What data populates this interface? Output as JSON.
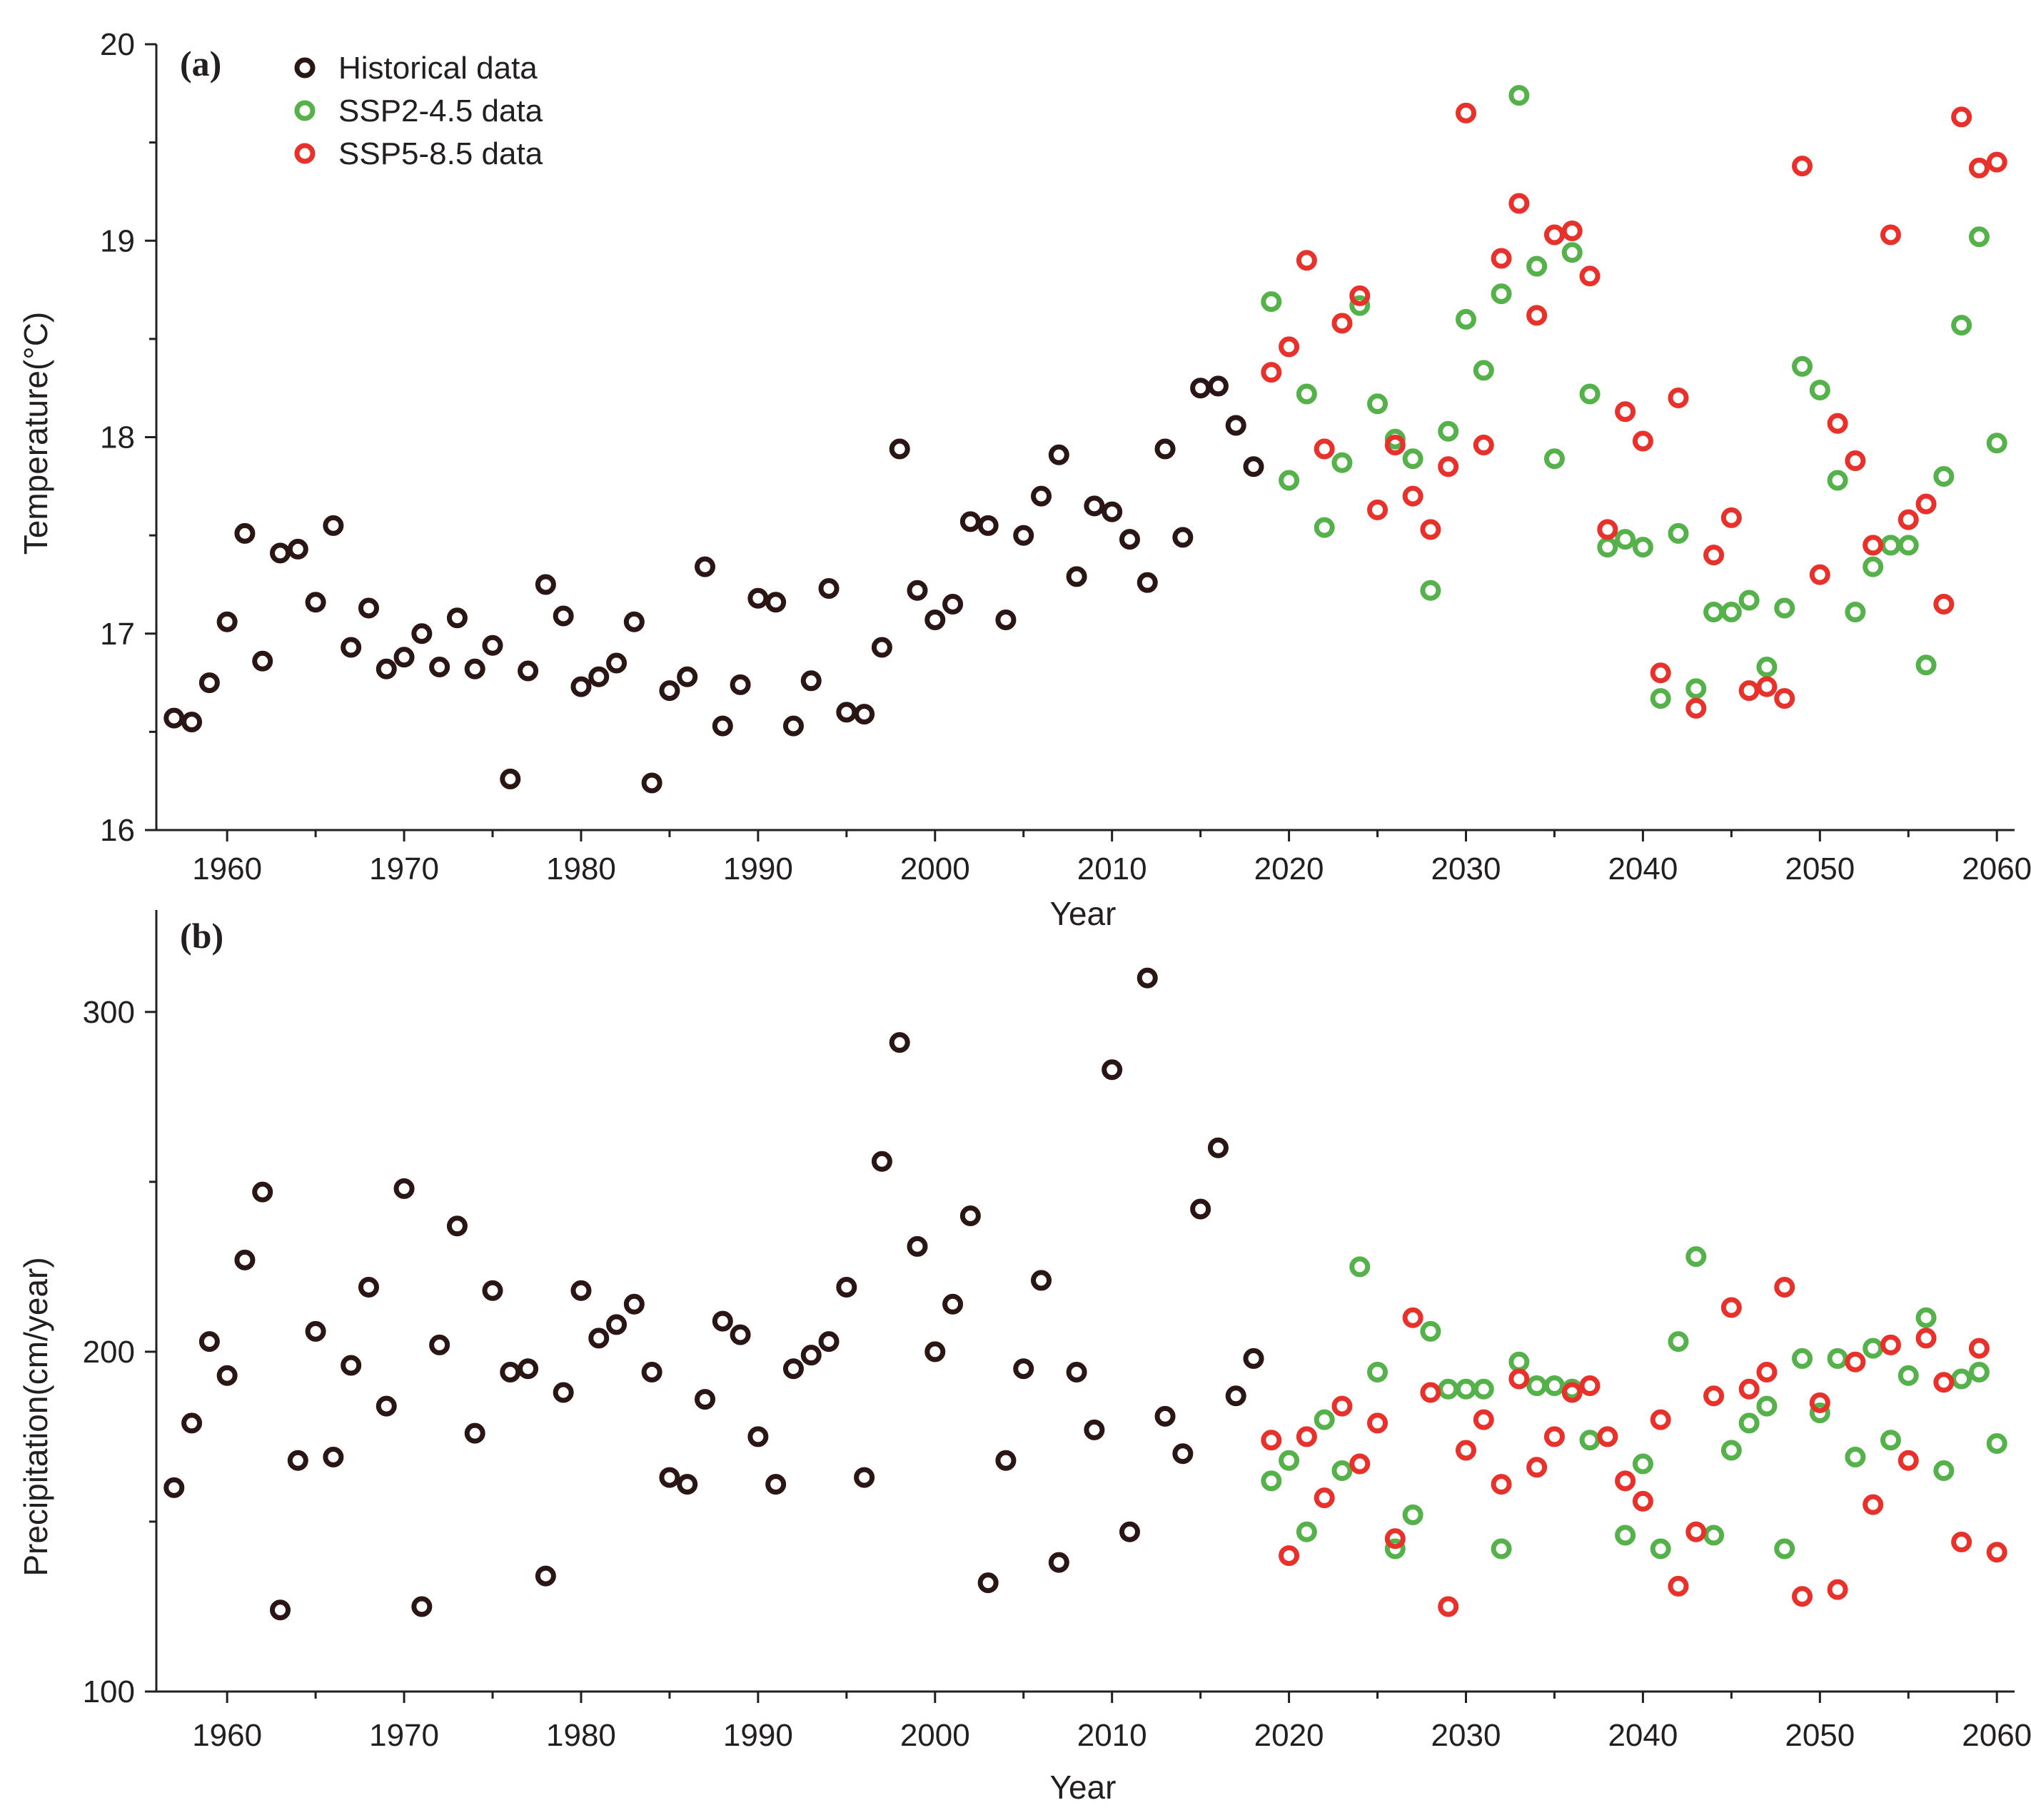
{
  "colors": {
    "historical": "#2a1614",
    "ssp245": "#55b24a",
    "ssp585": "#e8312a",
    "axis": "#231f20"
  },
  "legend": {
    "historical": "Historical data",
    "ssp245": "SSP2-4.5 data",
    "ssp585": "SSP5-8.5 data"
  },
  "chart_data": [
    {
      "type": "scatter",
      "panel_label": "(a)",
      "title": "",
      "xlabel": "Year",
      "ylabel": "Temperature(°C)",
      "xlim": [
        1956,
        2061
      ],
      "ylim": [
        16,
        20
      ],
      "xticks": [
        1960,
        1970,
        1980,
        1990,
        2000,
        2010,
        2020,
        2030,
        2040,
        2050,
        2060
      ],
      "yticks": [
        16,
        17,
        18,
        19,
        20
      ],
      "yminor": [
        16.5,
        17.5,
        18.5,
        19.5
      ],
      "legend_position": "top-left",
      "series": [
        {
          "name": "Historical data",
          "key": "historical",
          "x": [
            1957,
            1958,
            1959,
            1960,
            1961,
            1962,
            1963,
            1964,
            1965,
            1966,
            1967,
            1968,
            1969,
            1970,
            1971,
            1972,
            1973,
            1974,
            1975,
            1976,
            1977,
            1978,
            1979,
            1980,
            1981,
            1982,
            1983,
            1984,
            1985,
            1986,
            1987,
            1988,
            1989,
            1990,
            1991,
            1992,
            1993,
            1994,
            1995,
            1996,
            1997,
            1998,
            1999,
            2000,
            2001,
            2002,
            2003,
            2004,
            2005,
            2006,
            2007,
            2008,
            2009,
            2010,
            2011,
            2012,
            2013,
            2014,
            2015,
            2016,
            2017,
            2018
          ],
          "y": [
            16.57,
            16.55,
            16.75,
            17.06,
            17.51,
            16.86,
            17.41,
            17.43,
            17.16,
            17.55,
            16.93,
            17.13,
            16.82,
            16.88,
            17.0,
            16.83,
            17.08,
            16.82,
            16.94,
            16.26,
            16.81,
            17.25,
            17.09,
            16.73,
            16.78,
            16.85,
            17.06,
            16.24,
            16.71,
            16.78,
            17.34,
            16.53,
            16.74,
            17.18,
            17.16,
            16.53,
            16.76,
            17.23,
            16.6,
            16.59,
            16.93,
            17.94,
            17.22,
            17.07,
            17.15,
            17.57,
            17.55,
            17.07,
            17.5,
            17.7,
            17.91,
            17.29,
            17.65,
            17.62,
            17.48,
            17.26,
            17.94,
            17.49,
            18.25,
            18.26,
            18.06,
            17.85
          ]
        },
        {
          "name": "SSP2-4.5 data",
          "key": "ssp245",
          "x": [
            2019,
            2020,
            2021,
            2022,
            2023,
            2024,
            2025,
            2026,
            2027,
            2028,
            2029,
            2030,
            2031,
            2032,
            2033,
            2034,
            2035,
            2036,
            2037,
            2038,
            2039,
            2040,
            2041,
            2042,
            2043,
            2044,
            2045,
            2046,
            2047,
            2048,
            2049,
            2050,
            2051,
            2052,
            2053,
            2054,
            2055,
            2056,
            2057,
            2058,
            2059,
            2060
          ],
          "y": [
            18.69,
            17.78,
            18.22,
            17.54,
            17.87,
            18.67,
            18.17,
            17.99,
            17.89,
            17.22,
            18.03,
            18.6,
            18.34,
            18.73,
            19.74,
            18.87,
            17.89,
            18.94,
            18.22,
            17.44,
            17.48,
            17.44,
            16.67,
            17.51,
            16.72,
            17.11,
            17.11,
            17.17,
            16.83,
            17.13,
            18.36,
            18.24,
            17.78,
            17.11,
            17.34,
            17.45,
            17.45,
            16.84,
            17.8,
            18.57,
            19.02,
            17.97
          ]
        },
        {
          "name": "SSP5-8.5 data",
          "key": "ssp585",
          "x": [
            2019,
            2020,
            2021,
            2022,
            2023,
            2024,
            2025,
            2026,
            2027,
            2028,
            2029,
            2030,
            2031,
            2032,
            2033,
            2034,
            2035,
            2036,
            2037,
            2038,
            2039,
            2040,
            2041,
            2042,
            2043,
            2044,
            2045,
            2046,
            2047,
            2048,
            2049,
            2050,
            2051,
            2052,
            2053,
            2054,
            2055,
            2056,
            2057,
            2058,
            2059,
            2060
          ],
          "y": [
            18.33,
            18.46,
            18.9,
            17.94,
            18.58,
            18.72,
            17.63,
            17.96,
            17.7,
            17.53,
            17.85,
            19.65,
            17.96,
            18.91,
            19.19,
            18.62,
            19.03,
            19.05,
            18.82,
            17.53,
            18.13,
            17.98,
            16.8,
            18.2,
            16.62,
            17.4,
            17.59,
            16.71,
            16.73,
            16.67,
            19.38,
            17.3,
            18.07,
            17.88,
            17.45,
            19.03,
            17.58,
            17.66,
            17.15,
            19.63,
            19.37,
            19.4
          ]
        }
      ]
    },
    {
      "type": "scatter",
      "panel_label": "(b)",
      "title": "",
      "xlabel": "Year",
      "ylabel": "Precipitation(cm/year)",
      "xlim": [
        1956,
        2061
      ],
      "ylim": [
        100,
        330
      ],
      "xticks": [
        1960,
        1970,
        1980,
        1990,
        2000,
        2010,
        2020,
        2030,
        2040,
        2050,
        2060
      ],
      "yticks": [
        100,
        200,
        300
      ],
      "yminor": [
        150,
        250
      ],
      "series": [
        {
          "name": "Historical data",
          "key": "historical",
          "x": [
            1957,
            1958,
            1959,
            1960,
            1961,
            1962,
            1963,
            1964,
            1965,
            1966,
            1967,
            1968,
            1969,
            1970,
            1971,
            1972,
            1973,
            1974,
            1975,
            1976,
            1977,
            1978,
            1979,
            1980,
            1981,
            1982,
            1983,
            1984,
            1985,
            1986,
            1987,
            1988,
            1989,
            1990,
            1991,
            1992,
            1993,
            1994,
            1995,
            1996,
            1997,
            1998,
            1999,
            2000,
            2001,
            2002,
            2003,
            2004,
            2005,
            2006,
            2007,
            2008,
            2009,
            2010,
            2011,
            2012,
            2013,
            2014,
            2015,
            2016,
            2017,
            2018
          ],
          "y": [
            160,
            179,
            203,
            193,
            227,
            247,
            124,
            168,
            206,
            169,
            196,
            219,
            184,
            248,
            125,
            202,
            237,
            176,
            218,
            194,
            195,
            134,
            188,
            218,
            204,
            208,
            214,
            194,
            163,
            161,
            186,
            209,
            205,
            175,
            161,
            195,
            199,
            203,
            219,
            163,
            256,
            291,
            231,
            200,
            214,
            240,
            132,
            168,
            195,
            221,
            138,
            194,
            177,
            283,
            147,
            310,
            181,
            170,
            242,
            260,
            187,
            198
          ]
        },
        {
          "name": "SSP2-4.5 data",
          "key": "ssp245",
          "x": [
            2019,
            2020,
            2021,
            2022,
            2023,
            2024,
            2025,
            2026,
            2027,
            2028,
            2029,
            2030,
            2031,
            2032,
            2033,
            2034,
            2035,
            2036,
            2037,
            2038,
            2039,
            2040,
            2041,
            2042,
            2043,
            2044,
            2045,
            2046,
            2047,
            2048,
            2049,
            2050,
            2051,
            2052,
            2053,
            2054,
            2055,
            2056,
            2057,
            2058,
            2059,
            2060
          ],
          "y": [
            162,
            168,
            147,
            180,
            165,
            225,
            194,
            142,
            152,
            206,
            189,
            189,
            189,
            142,
            197,
            190,
            190,
            189,
            174,
            175,
            146,
            167,
            142,
            203,
            228,
            146,
            171,
            179,
            184,
            142,
            198,
            182,
            198,
            169,
            201,
            174,
            193,
            210,
            165,
            192,
            194,
            173
          ]
        },
        {
          "name": "SSP5-8.5 data",
          "key": "ssp585",
          "x": [
            2019,
            2020,
            2021,
            2022,
            2023,
            2024,
            2025,
            2026,
            2027,
            2028,
            2029,
            2030,
            2031,
            2032,
            2033,
            2034,
            2035,
            2036,
            2037,
            2038,
            2039,
            2040,
            2041,
            2042,
            2043,
            2044,
            2045,
            2046,
            2047,
            2048,
            2049,
            2050,
            2051,
            2052,
            2053,
            2054,
            2055,
            2056,
            2057,
            2058,
            2059,
            2060
          ],
          "y": [
            174,
            140,
            175,
            157,
            184,
            167,
            179,
            145,
            210,
            188,
            125,
            171,
            180,
            161,
            192,
            166,
            175,
            188,
            190,
            175,
            162,
            156,
            180,
            131,
            147,
            187,
            213,
            189,
            194,
            219,
            128,
            185,
            130,
            197,
            155,
            202,
            168,
            204,
            191,
            144,
            201,
            141
          ]
        }
      ]
    }
  ]
}
